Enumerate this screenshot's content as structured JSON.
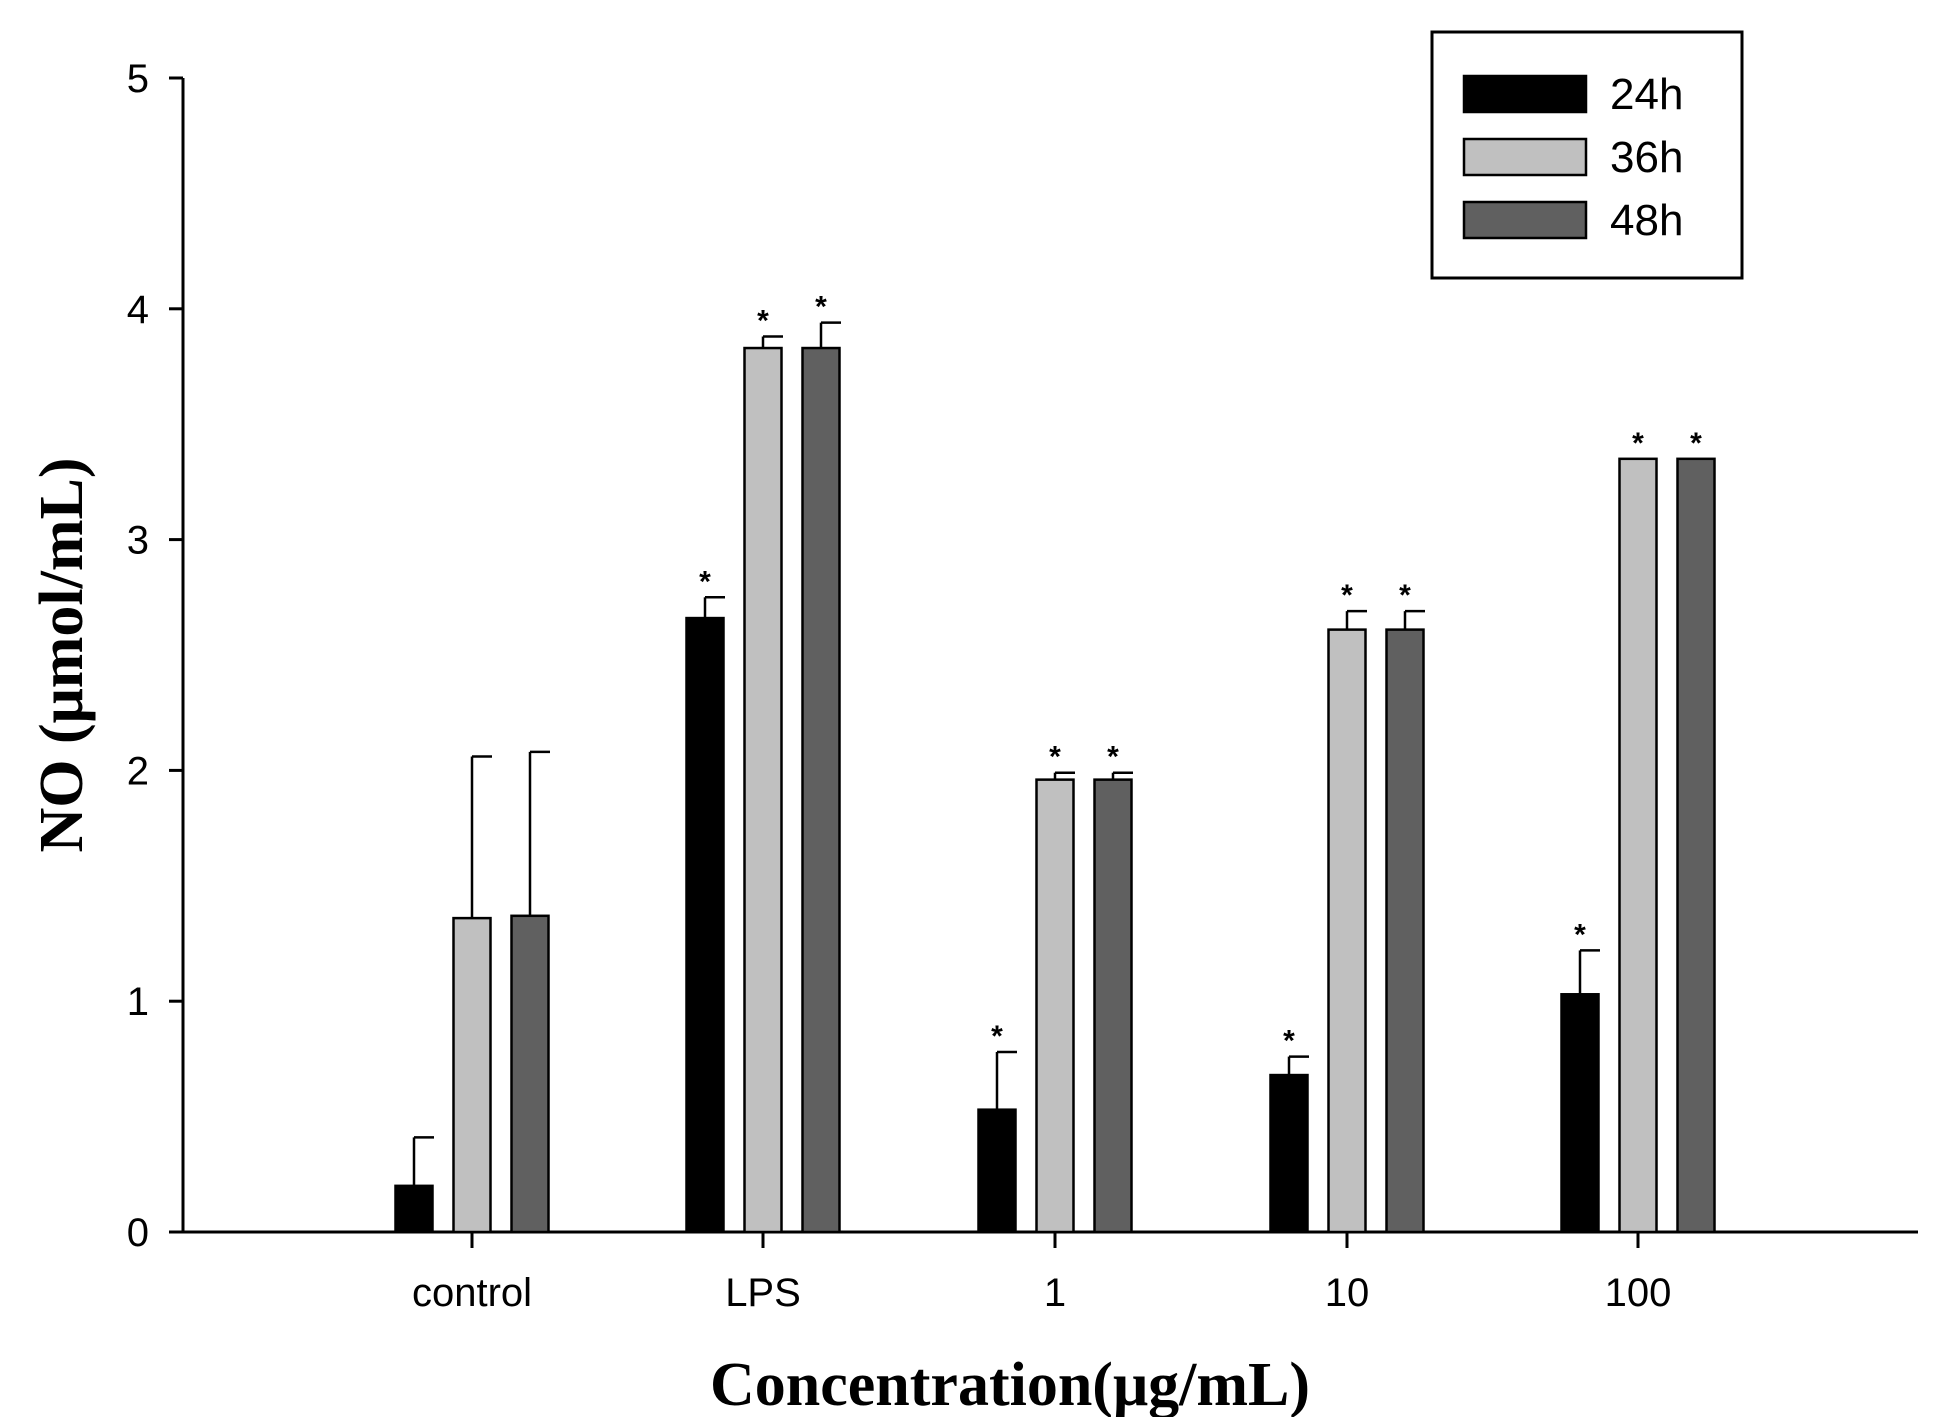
{
  "chart_data": {
    "type": "bar",
    "title": "",
    "xlabel": "Concentration(μg/mL)",
    "ylabel": "NO (μmol/mL)",
    "ylim": [
      0,
      5
    ],
    "yticks": [
      0,
      1,
      2,
      3,
      4,
      5
    ],
    "grid": false,
    "legend_position": "top-right",
    "categories": [
      "control",
      "LPS",
      "1",
      "10",
      "100"
    ],
    "series": [
      {
        "name": "24h",
        "color": "#000000",
        "values": [
          0.2,
          2.66,
          0.53,
          0.68,
          1.03
        ],
        "errors": [
          0.21,
          0.09,
          0.25,
          0.08,
          0.19
        ],
        "significant": [
          false,
          true,
          true,
          true,
          true
        ]
      },
      {
        "name": "36h",
        "color": "#c0c0c0",
        "values": [
          1.36,
          3.83,
          1.96,
          2.61,
          3.35
        ],
        "errors": [
          0.7,
          0.05,
          0.03,
          0.08,
          0.0
        ],
        "significant": [
          false,
          true,
          true,
          true,
          true
        ]
      },
      {
        "name": "48h",
        "color": "#606060",
        "values": [
          1.37,
          3.83,
          1.96,
          2.61,
          3.35
        ],
        "errors": [
          0.71,
          0.11,
          0.03,
          0.08,
          0.0
        ],
        "significant": [
          false,
          true,
          true,
          true,
          true
        ]
      }
    ],
    "significance_marker": "*"
  }
}
